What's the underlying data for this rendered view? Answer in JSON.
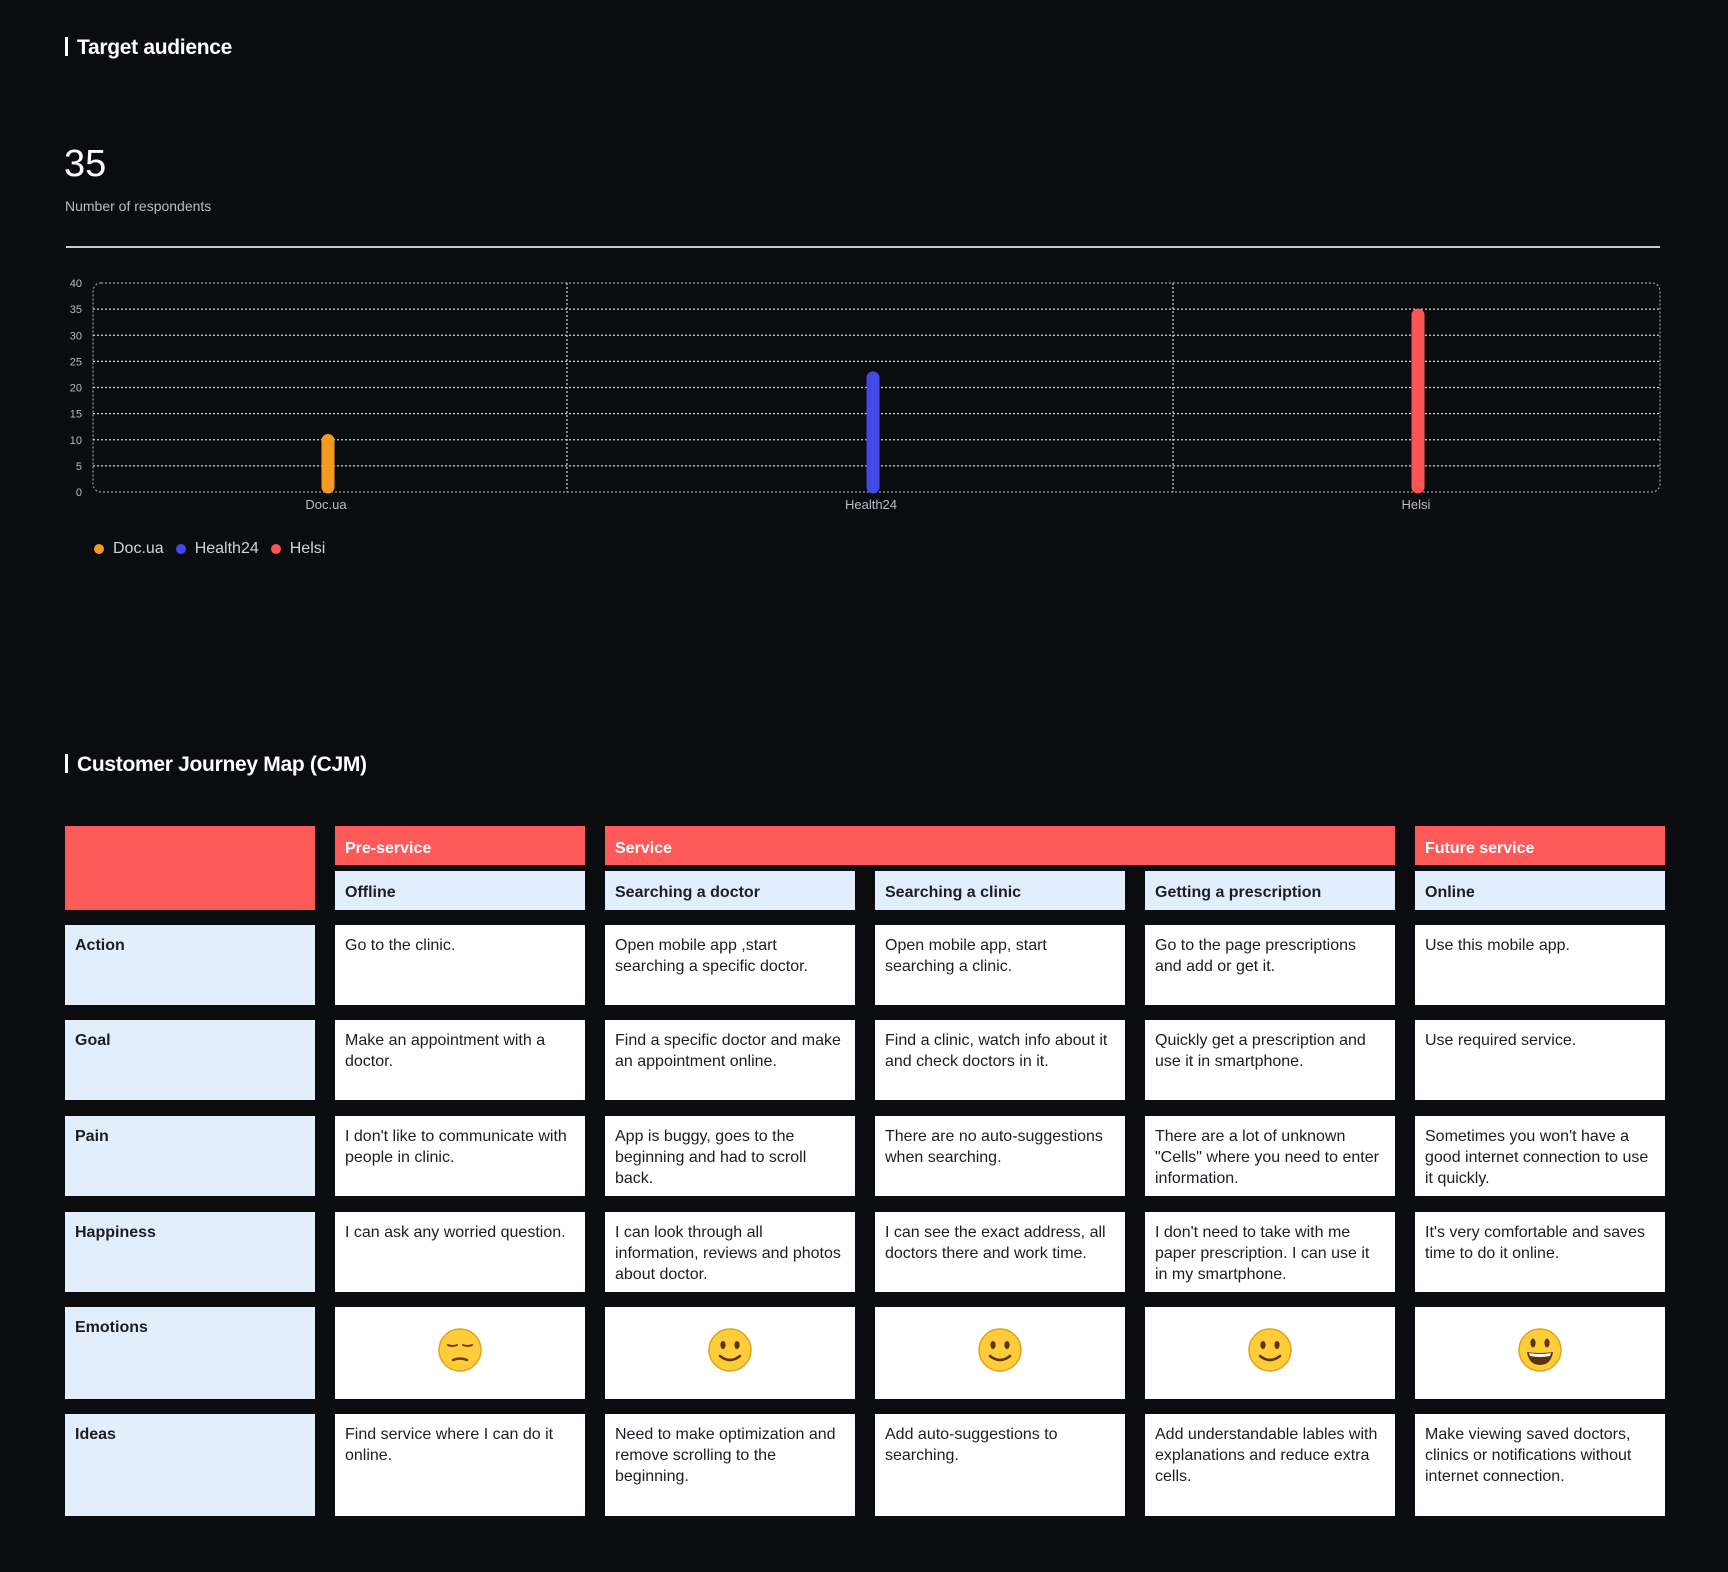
{
  "target_section": {
    "title": "Target audience"
  },
  "stats": {
    "number": "35",
    "caption": "Number of respondents"
  },
  "chart_data": {
    "type": "bar",
    "categories": [
      "Doc.ua",
      "Health24",
      "Helsi"
    ],
    "values": [
      11,
      23,
      35
    ],
    "colors": [
      "#f49a1e",
      "#4349e6",
      "#ff5454"
    ],
    "ylim": [
      0,
      40
    ],
    "yticks": [
      0,
      5,
      10,
      15,
      20,
      25,
      30,
      35,
      40
    ],
    "grid": true,
    "legend": [
      "Doc.ua",
      "Health24",
      "Helsi"
    ],
    "legend_position": "bottom-left"
  },
  "cjm": {
    "title": "Customer Journey Map (CJM)",
    "stages": [
      "Pre-service",
      "Service",
      "Future service"
    ],
    "columns": [
      "Offline",
      "Searching a doctor",
      "Searching a clinic",
      "Getting a prescription",
      "Online"
    ],
    "rows": [
      {
        "label": "Action",
        "cells": [
          "Go to the clinic.",
          "Open mobile app ,start searching a specific doctor.",
          "Open mobile app, start searching a clinic.",
          "Go to the page prescriptions and add or get it.",
          "Use this mobile app."
        ]
      },
      {
        "label": "Goal",
        "cells": [
          "Make an appointment with a doctor.",
          "Find a specific doctor and make an appointment online.",
          "Find a clinic, watch info about it and check doctors in it.",
          "Quickly get a prescription and use it in smartphone.",
          "Use required service."
        ]
      },
      {
        "label": "Pain",
        "cells": [
          "I don't like to communicate with people in clinic.",
          "App is buggy, goes to the beginning and had to scroll back.",
          "There are no auto-suggestions when searching.",
          "There are a lot of unknown \"Cells\" where you need to enter information.",
          "Sometimes you won't have a good internet connection to use it quickly."
        ]
      },
      {
        "label": "Happiness",
        "cells": [
          "I can ask any worried question.",
          "I can look through all information, reviews and photos about doctor.",
          "I can see the exact address, all doctors there and work time.",
          "I don't need to take with me paper prescription. I can use it in my smartphone.",
          "It's very comfortable and saves time to do it online."
        ]
      },
      {
        "label": "Emotions",
        "emotions": [
          "pensive",
          "slight-smile",
          "slight-smile",
          "slight-smile",
          "big-smile"
        ]
      },
      {
        "label": "Ideas",
        "cells": [
          "Find service where I can do it online.",
          "Need to make optimization and remove scrolling to the beginning.",
          "Add auto-suggestions to searching.",
          "Add understandable lables with explanations and reduce extra cells.",
          "Make viewing saved doctors, clinics or notifications without internet connection."
        ]
      }
    ]
  }
}
